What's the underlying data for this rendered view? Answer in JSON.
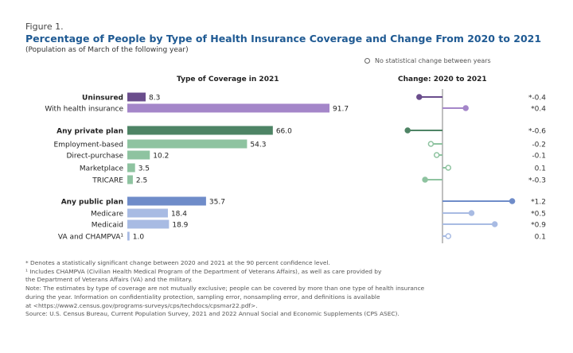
{
  "figure_label": "Figure 1.",
  "chart_data": {
    "type": "bar",
    "title": "Percentage of People by Type of Health Insurance Coverage and Change From 2020 to 2021",
    "subtitle": "(Population as of March of the following year)",
    "legend": "No statistical change between years",
    "left_panel_title": "Type of Coverage in 2021",
    "right_panel_title": "Change: 2020 to 2021",
    "categories": [
      "Uninsured",
      "With health insurance",
      "Any private plan",
      "Employment-based",
      "Direct-purchase",
      "Marketplace",
      "TRICARE",
      "Any public plan",
      "Medicare",
      "Medicaid",
      "VA and CHAMPVA¹"
    ],
    "bold": [
      true,
      false,
      true,
      false,
      false,
      false,
      false,
      true,
      false,
      false,
      false
    ],
    "values": [
      8.3,
      91.7,
      66.0,
      54.3,
      10.2,
      3.5,
      2.5,
      35.7,
      18.4,
      18.9,
      1.0
    ],
    "value_labels": [
      "8.3",
      "91.7",
      "66.0",
      "54.3",
      "10.2",
      "3.5",
      "2.5",
      "35.7",
      "18.4",
      "18.9",
      "1.0"
    ],
    "change": [
      -0.4,
      0.4,
      -0.6,
      -0.2,
      -0.1,
      0.1,
      -0.3,
      1.2,
      0.5,
      0.9,
      0.1
    ],
    "change_labels": [
      "*-0.4",
      "*0.4",
      "*-0.6",
      "-0.2",
      "-0.1",
      "0.1",
      "*-0.3",
      "*1.2",
      "*0.5",
      "*0.9",
      "0.1"
    ],
    "significant": [
      true,
      true,
      true,
      false,
      false,
      false,
      true,
      true,
      true,
      true,
      false
    ],
    "colors": [
      "#6a4d8c",
      "#a486c9",
      "#4e8465",
      "#8ec3a0",
      "#8ec3a0",
      "#8ec3a0",
      "#8ec3a0",
      "#6f8cc9",
      "#a8bbe3",
      "#a8bbe3",
      "#a8bbe3"
    ]
  },
  "notes": [
    "* Denotes a statistically significant change between 2020 and 2021 at the 90 percent confidence level.",
    "¹ Includes CHAMPVA (Civilian Health Medical Program of the Department of Veterans Affairs), as well as care provided by",
    "the Department of Veterans Affairs (VA) and the military.",
    "Note: The estimates by type of coverage are not mutually exclusive; people can be covered by more than one type of health insurance",
    "during the year. Information on confidentiality protection, sampling error, nonsampling error, and definitions is available",
    "at <https://www2.census.gov/programs-surveys/cps/techdocs/cpsmar22.pdf>.",
    "Source: U.S. Census Bureau, Current Population Survey, 2021 and 2022 Annual Social and Economic Supplements (CPS ASEC)."
  ]
}
